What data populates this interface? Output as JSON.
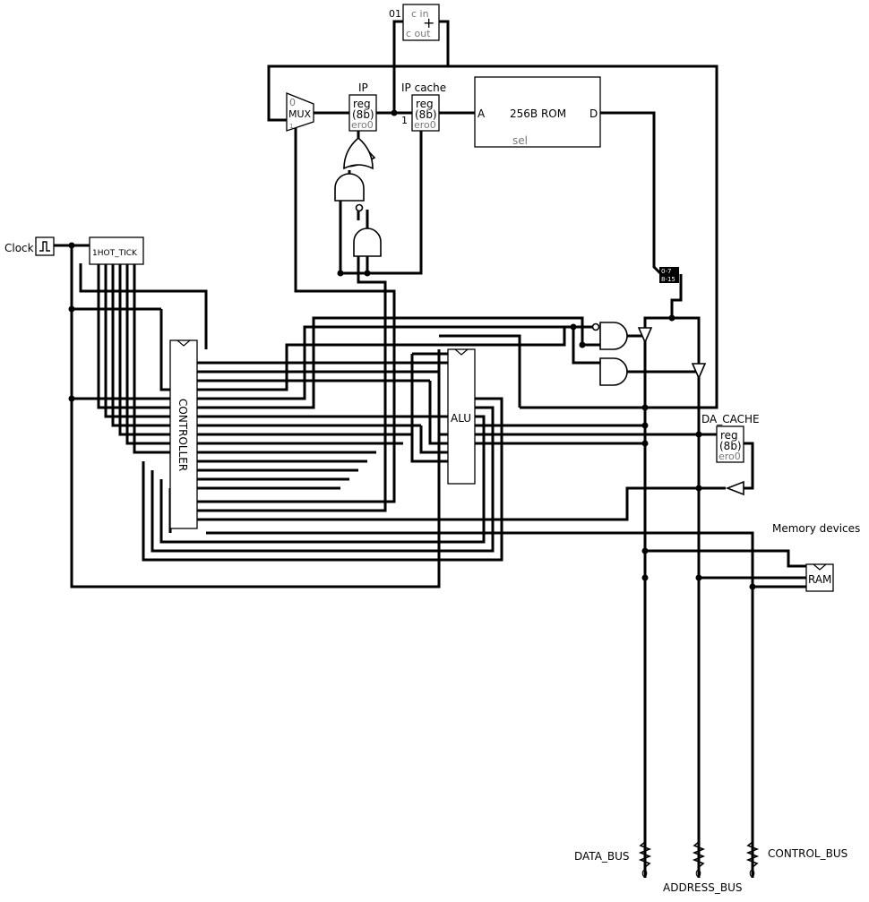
{
  "circuit": {
    "clock_label": "Clock",
    "onehot_label": "1HOT_TICK",
    "mux_label": "MUX",
    "mux_in0": "0",
    "mux_in1": "1",
    "ip_label": "IP",
    "ip_reg": "reg",
    "ip_width": "(8b)",
    "ip_zero": "ero0",
    "ipcache_label": "IP cache",
    "ipcache_reg": "reg",
    "ipcache_width": "(8b)",
    "ipcache_zero": "ero0",
    "ipcache_in": "1",
    "adder_cin": "c in",
    "adder_cout": "c out",
    "adder_const": "01",
    "adder_plus": "+",
    "rom_label": "256B ROM",
    "rom_a": "A",
    "rom_d": "D",
    "rom_sel": "sel",
    "splitter_a": "0-7",
    "splitter_b": "8-15",
    "controller_label": "CONTROLLER",
    "alu_label": "ALU",
    "dacache_label": "DA_CACHE",
    "dacache_reg": "reg",
    "dacache_width": "(8b)",
    "dacache_zero": "ero0",
    "memory_label": "Memory devices",
    "ram_label": "RAM",
    "data_bus": "DATA_BUS",
    "address_bus": "ADDRESS_BUS",
    "control_bus": "CONTROL_BUS",
    "pull_data": "0",
    "pull_address": "0",
    "pull_control": "0"
  }
}
